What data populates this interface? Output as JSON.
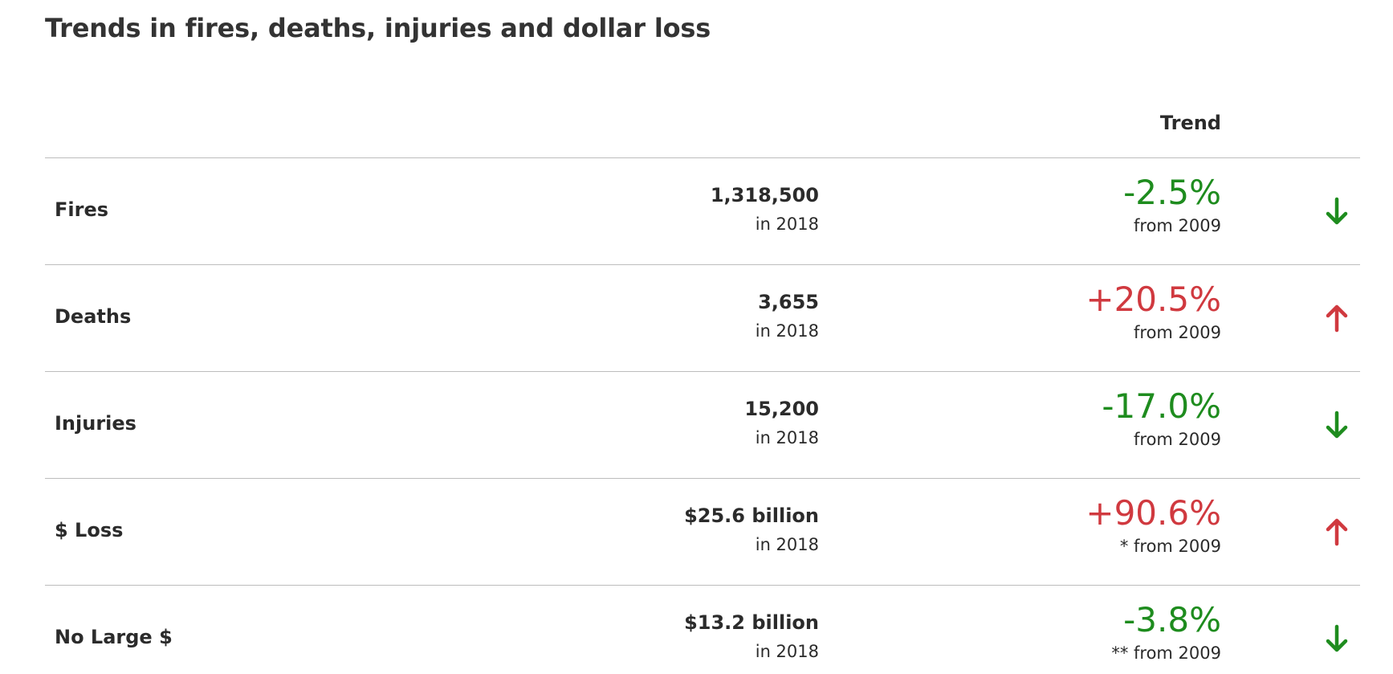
{
  "page": {
    "title": "Trends in fires, deaths, injuries and dollar loss",
    "trend_header": "Trend"
  },
  "colors": {
    "down": "#1e8c1e",
    "up": "#d0393f"
  },
  "rows": [
    {
      "label": "Fires",
      "value": "1,318,500",
      "year": "in 2018",
      "pct": "-2.5%",
      "from": "from 2009",
      "direction": "down",
      "icon": "arrow-down-icon"
    },
    {
      "label": "Deaths",
      "value": "3,655",
      "year": "in 2018",
      "pct": "+20.5%",
      "from": "from 2009",
      "direction": "up",
      "icon": "arrow-up-icon"
    },
    {
      "label": "Injuries",
      "value": "15,200",
      "year": "in 2018",
      "pct": "-17.0%",
      "from": "from 2009",
      "direction": "down",
      "icon": "arrow-down-icon"
    },
    {
      "label": "$ Loss",
      "value": "$25.6 billion",
      "year": "in 2018",
      "pct": "+90.6%",
      "from": "* from 2009",
      "direction": "up",
      "icon": "arrow-up-icon"
    },
    {
      "label": "No Large $",
      "value": "$13.2 billion",
      "year": "in 2018",
      "pct": "-3.8%",
      "from": "** from 2009",
      "direction": "down",
      "icon": "arrow-down-icon"
    }
  ]
}
